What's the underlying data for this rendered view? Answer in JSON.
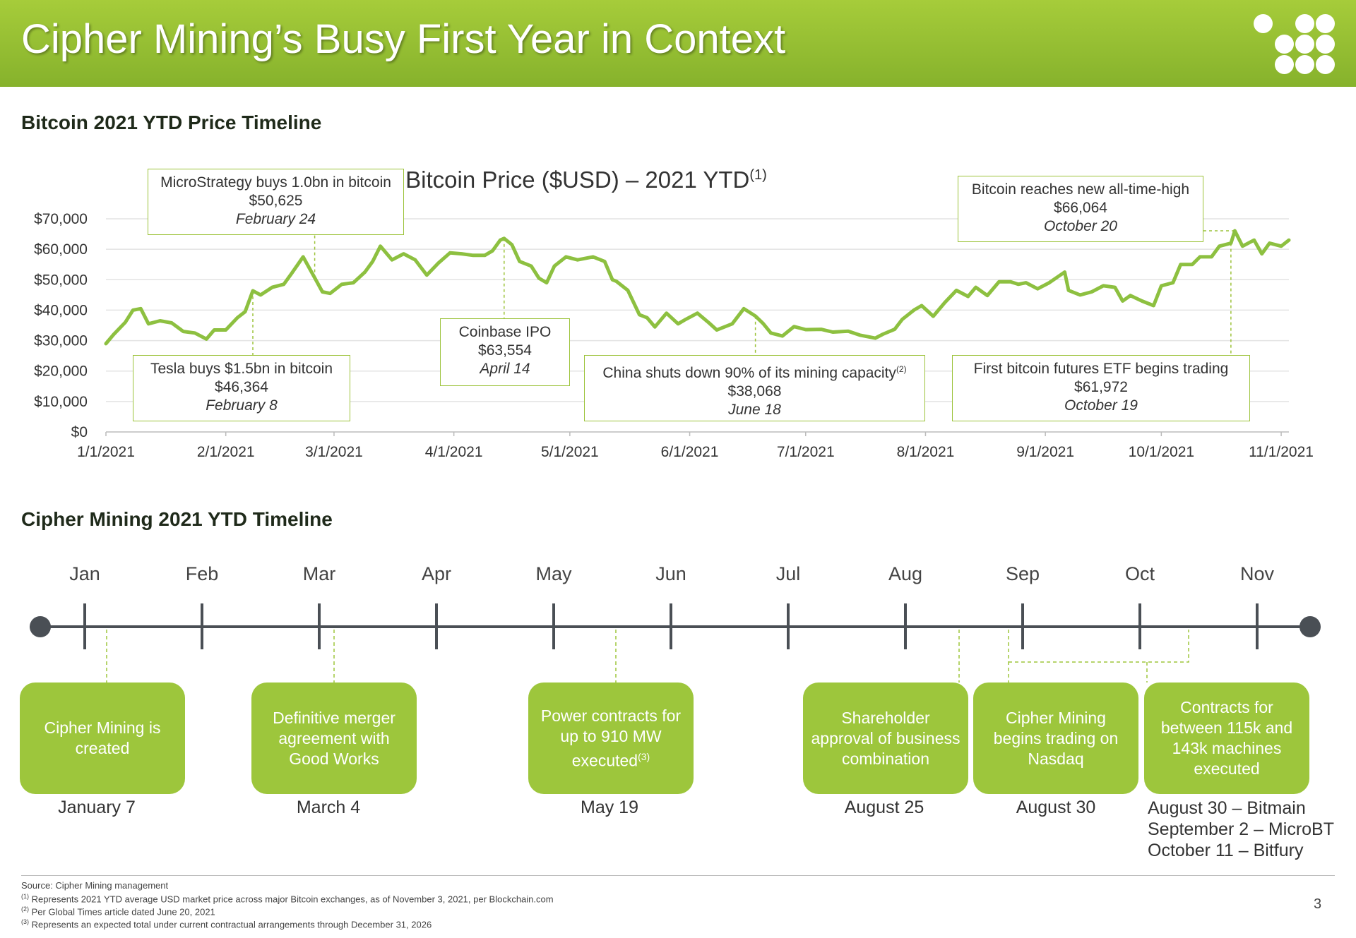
{
  "header": {
    "title": "Cipher Mining’s Busy First Year in Context"
  },
  "colors": {
    "brand_green": "#9dc63c",
    "line_green": "#8dc040",
    "timeline_gray": "#4a4f55"
  },
  "sections": {
    "btc": "Bitcoin 2021 YTD Price Timeline",
    "cipher": "Cipher Mining 2021 YTD Timeline"
  },
  "chart_data": {
    "type": "line",
    "title": "Bitcoin Price ($USD) – 2021 YTD",
    "title_note": "(1)",
    "y_ticks": [
      "$0",
      "$10,000",
      "$20,000",
      "$30,000",
      "$40,000",
      "$50,000",
      "$60,000",
      "$70,000"
    ],
    "x_ticks": [
      "1/1/2021",
      "2/1/2021",
      "3/1/2021",
      "4/1/2021",
      "5/1/2021",
      "6/1/2021",
      "7/1/2021",
      "8/1/2021",
      "9/1/2021",
      "10/1/2021",
      "11/1/2021"
    ],
    "ylim": [
      0,
      70000
    ],
    "xlim": [
      "2021-01-01",
      "2021-11-03"
    ],
    "grid": true,
    "series": [
      {
        "points": [
          [
            "2021-01-01",
            29000
          ],
          [
            "2021-01-03",
            32000
          ],
          [
            "2021-01-06",
            36000
          ],
          [
            "2021-01-08",
            40000
          ],
          [
            "2021-01-10",
            40500
          ],
          [
            "2021-01-12",
            35500
          ],
          [
            "2021-01-15",
            36500
          ],
          [
            "2021-01-18",
            35800
          ],
          [
            "2021-01-21",
            33000
          ],
          [
            "2021-01-24",
            32500
          ],
          [
            "2021-01-27",
            30500
          ],
          [
            "2021-01-29",
            33500
          ],
          [
            "2021-02-01",
            33500
          ],
          [
            "2021-02-04",
            37500
          ],
          [
            "2021-02-06",
            39500
          ],
          [
            "2021-02-08",
            46364
          ],
          [
            "2021-02-10",
            45000
          ],
          [
            "2021-02-13",
            47500
          ],
          [
            "2021-02-16",
            48500
          ],
          [
            "2021-02-18",
            52000
          ],
          [
            "2021-02-21",
            57500
          ],
          [
            "2021-02-24",
            50625
          ],
          [
            "2021-02-26",
            46000
          ],
          [
            "2021-02-28",
            45500
          ],
          [
            "2021-03-03",
            48500
          ],
          [
            "2021-03-06",
            49000
          ],
          [
            "2021-03-09",
            52500
          ],
          [
            "2021-03-11",
            56000
          ],
          [
            "2021-03-13",
            61000
          ],
          [
            "2021-03-16",
            56500
          ],
          [
            "2021-03-19",
            58500
          ],
          [
            "2021-03-22",
            56500
          ],
          [
            "2021-03-25",
            51500
          ],
          [
            "2021-03-28",
            55500
          ],
          [
            "2021-03-31",
            58800
          ],
          [
            "2021-04-03",
            58500
          ],
          [
            "2021-04-06",
            58000
          ],
          [
            "2021-04-09",
            58000
          ],
          [
            "2021-04-11",
            59500
          ],
          [
            "2021-04-13",
            63000
          ],
          [
            "2021-04-14",
            63554
          ],
          [
            "2021-04-16",
            61500
          ],
          [
            "2021-04-18",
            56000
          ],
          [
            "2021-04-21",
            54500
          ],
          [
            "2021-04-23",
            50500
          ],
          [
            "2021-04-25",
            49000
          ],
          [
            "2021-04-27",
            54500
          ],
          [
            "2021-04-30",
            57500
          ],
          [
            "2021-05-03",
            56500
          ],
          [
            "2021-05-07",
            57500
          ],
          [
            "2021-05-10",
            56000
          ],
          [
            "2021-05-12",
            50000
          ],
          [
            "2021-05-13",
            49500
          ],
          [
            "2021-05-16",
            46500
          ],
          [
            "2021-05-19",
            38500
          ],
          [
            "2021-05-21",
            37500
          ],
          [
            "2021-05-23",
            34500
          ],
          [
            "2021-05-26",
            39000
          ],
          [
            "2021-05-29",
            35500
          ],
          [
            "2021-05-31",
            37000
          ],
          [
            "2021-06-03",
            39000
          ],
          [
            "2021-06-06",
            35800
          ],
          [
            "2021-06-08",
            33500
          ],
          [
            "2021-06-12",
            35500
          ],
          [
            "2021-06-15",
            40500
          ],
          [
            "2021-06-18",
            38068
          ],
          [
            "2021-06-20",
            35600
          ],
          [
            "2021-06-22",
            32500
          ],
          [
            "2021-06-25",
            31500
          ],
          [
            "2021-06-28",
            34600
          ],
          [
            "2021-07-01",
            33600
          ],
          [
            "2021-07-05",
            33700
          ],
          [
            "2021-07-08",
            32800
          ],
          [
            "2021-07-12",
            33100
          ],
          [
            "2021-07-15",
            31800
          ],
          [
            "2021-07-19",
            30800
          ],
          [
            "2021-07-21",
            32100
          ],
          [
            "2021-07-24",
            33700
          ],
          [
            "2021-07-26",
            37000
          ],
          [
            "2021-07-29",
            40000
          ],
          [
            "2021-07-31",
            41500
          ],
          [
            "2021-08-03",
            38000
          ],
          [
            "2021-08-06",
            42500
          ],
          [
            "2021-08-09",
            46500
          ],
          [
            "2021-08-12",
            44500
          ],
          [
            "2021-08-14",
            47500
          ],
          [
            "2021-08-17",
            44800
          ],
          [
            "2021-08-20",
            49300
          ],
          [
            "2021-08-23",
            49300
          ],
          [
            "2021-08-25",
            48500
          ],
          [
            "2021-08-27",
            49000
          ],
          [
            "2021-08-30",
            47000
          ],
          [
            "2021-09-02",
            49000
          ],
          [
            "2021-09-06",
            52500
          ],
          [
            "2021-09-07",
            46500
          ],
          [
            "2021-09-10",
            45000
          ],
          [
            "2021-09-13",
            46000
          ],
          [
            "2021-09-16",
            48000
          ],
          [
            "2021-09-19",
            47500
          ],
          [
            "2021-09-21",
            43000
          ],
          [
            "2021-09-23",
            44800
          ],
          [
            "2021-09-26",
            43000
          ],
          [
            "2021-09-29",
            41500
          ],
          [
            "2021-10-01",
            48000
          ],
          [
            "2021-10-04",
            49000
          ],
          [
            "2021-10-06",
            55000
          ],
          [
            "2021-10-09",
            55000
          ],
          [
            "2021-10-11",
            57500
          ],
          [
            "2021-10-14",
            57500
          ],
          [
            "2021-10-16",
            61000
          ],
          [
            "2021-10-19",
            61972
          ],
          [
            "2021-10-20",
            66064
          ],
          [
            "2021-10-22",
            61000
          ],
          [
            "2021-10-25",
            63000
          ],
          [
            "2021-10-27",
            58500
          ],
          [
            "2021-10-29",
            62000
          ],
          [
            "2021-11-01",
            61000
          ],
          [
            "2021-11-03",
            63000
          ]
        ]
      }
    ],
    "annotations": [
      {
        "text": "MicroStrategy buys 1.0bn in bitcoin",
        "value": "$50,625",
        "date": "February 24",
        "x": "2021-02-24",
        "y": 50625,
        "anchor": "above"
      },
      {
        "text": "Tesla buys $1.5bn in bitcoin",
        "value": "$46,364",
        "date": "February 8",
        "x": "2021-02-08",
        "y": 46364,
        "anchor": "below"
      },
      {
        "text": "Coinbase IPO",
        "value": "$63,554",
        "date": "April 14",
        "x": "2021-04-14",
        "y": 63554,
        "anchor": "below"
      },
      {
        "text": "China shuts down 90% of its mining capacity",
        "note": "(2)",
        "value": "$38,068",
        "date": "June 18",
        "x": "2021-06-18",
        "y": 38068,
        "anchor": "below"
      },
      {
        "text": "Bitcoin reaches new all-time-high",
        "value": "$66,064",
        "date": "October 20",
        "x": "2021-10-20",
        "y": 66064,
        "anchor": "above"
      },
      {
        "text": "First bitcoin futures ETF begins trading",
        "value": "$61,972",
        "date": "October 19",
        "x": "2021-10-19",
        "y": 61972,
        "anchor": "below"
      }
    ]
  },
  "timeline": {
    "months": [
      "Jan",
      "Feb",
      "Mar",
      "Apr",
      "May",
      "Jun",
      "Jul",
      "Aug",
      "Sep",
      "Oct",
      "Nov"
    ],
    "events": [
      {
        "label": "Cipher Mining is created",
        "date": "January 7"
      },
      {
        "label": "Definitive merger agreement with Good Works",
        "date": "March 4"
      },
      {
        "label": "Power contracts for up to 910 MW executed",
        "note": "(3)",
        "date": "May 19"
      },
      {
        "label": "Shareholder approval of business combination",
        "date": "August 25"
      },
      {
        "label": "Cipher Mining begins trading on Nasdaq",
        "date": "August 30"
      },
      {
        "label": "Contracts for between 115k and 143k machines executed",
        "date_lines": [
          "August 30 – Bitmain",
          "September 2 – MicroBT",
          "October 11 – Bitfury"
        ]
      }
    ]
  },
  "footer": {
    "source": "Source: Cipher Mining management",
    "notes": [
      {
        "mark": "(1)",
        "text": "Represents 2021 YTD average USD market price across major Bitcoin exchanges, as of November 3, 2021, per Blockchain.com"
      },
      {
        "mark": "(2)",
        "text": "Per Global Times article dated June 20, 2021"
      },
      {
        "mark": "(3)",
        "text": "Represents an expected total under current contractual arrangements through December 31, 2026"
      }
    ],
    "page": "3"
  }
}
